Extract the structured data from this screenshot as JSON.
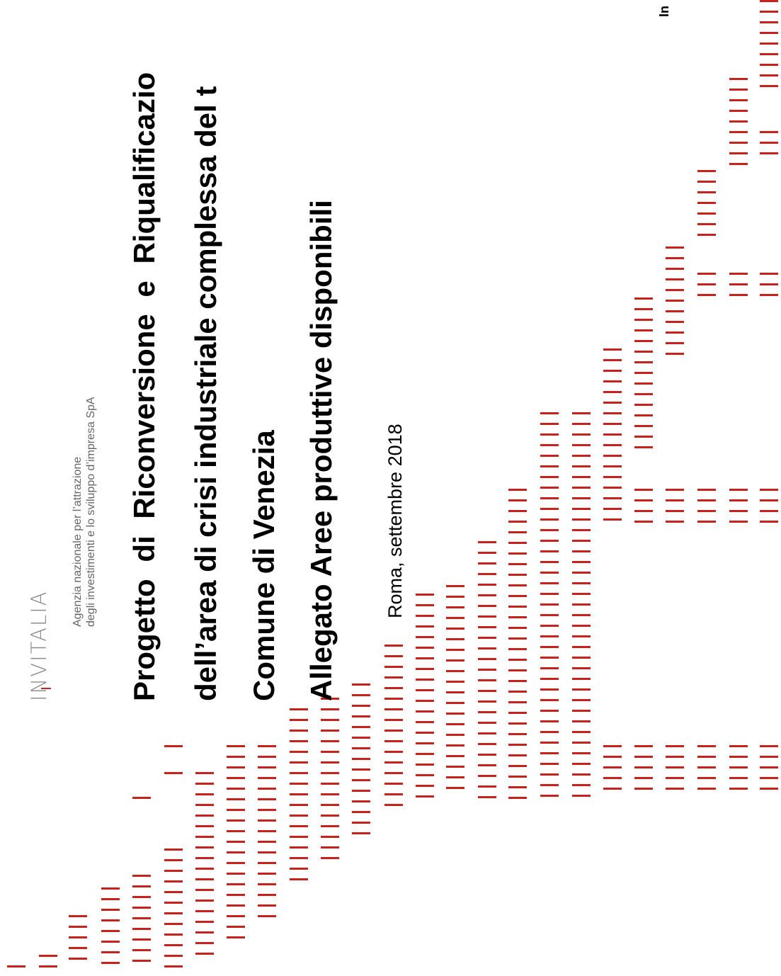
{
  "logo": {
    "text": "INVITALIA"
  },
  "agency": {
    "line1": "Agenzia nazionale per l’attrazione",
    "line2": "degli investimenti e lo sviluppo d’impresa SpA"
  },
  "title": {
    "line1": "Progetto di Riconversione e Riqualificazio",
    "line2": "dell’area di crisi industriale complessa del t",
    "line3": "Comune di Venezia",
    "line4": "Allegato Aree produttive disponibili"
  },
  "date": "Roma, settembre 2018",
  "corner_text": "In",
  "colors": {
    "accent": "#c8221d",
    "logo_grey": "#8c8c8c"
  }
}
